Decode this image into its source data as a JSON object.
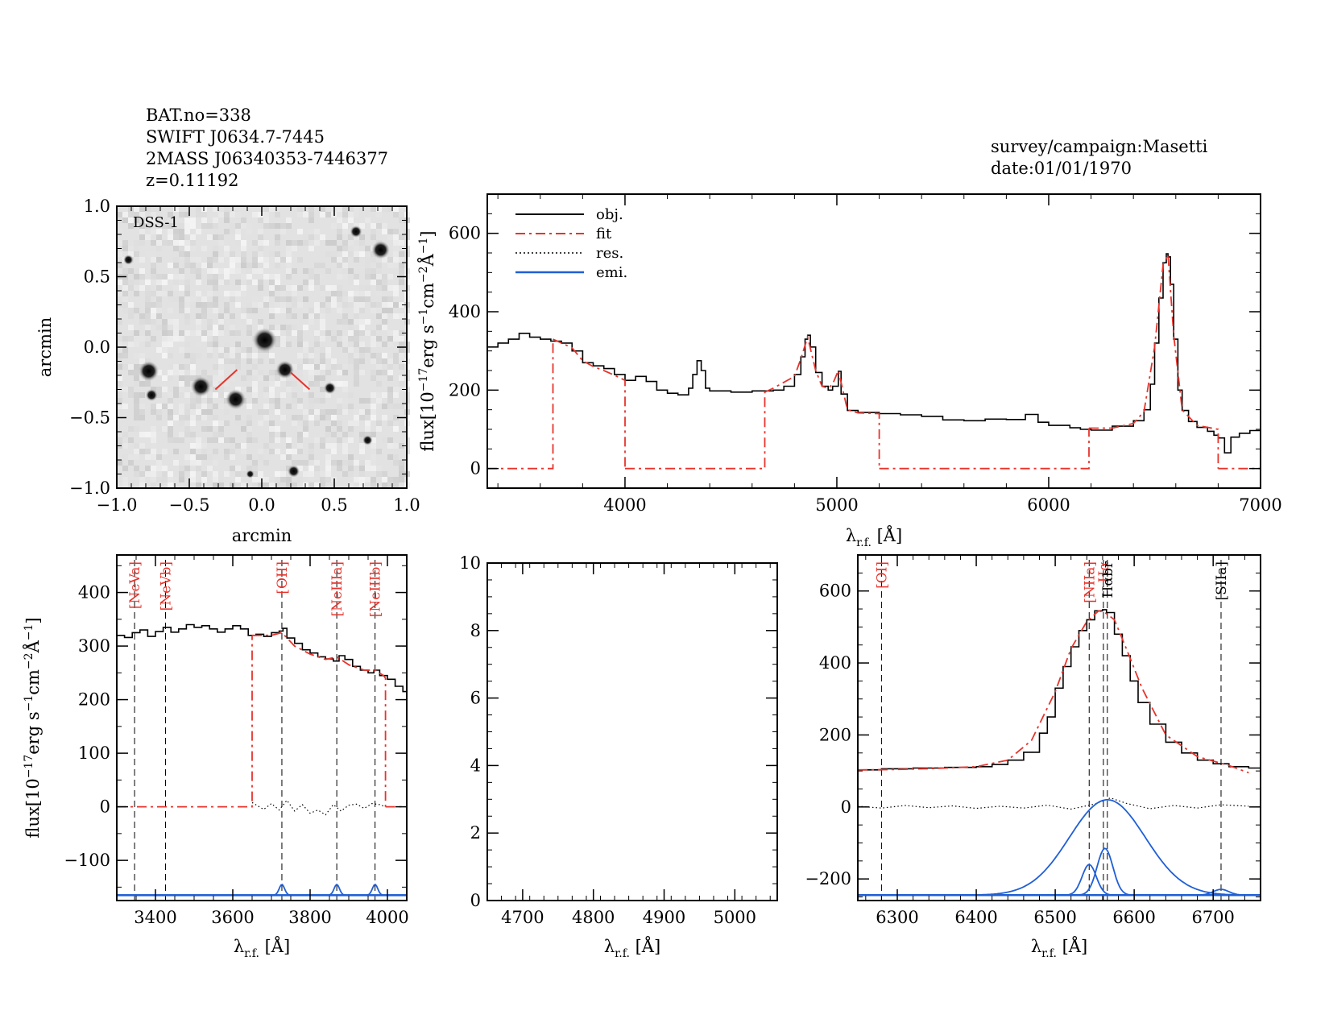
{
  "header": {
    "lines": [
      "BAT.no=338",
      "SWIFT J0634.7-7445",
      "2MASS J06340353-7446377",
      "z=0.11192"
    ],
    "survey": "survey/campaign:Masetti",
    "date": "date:01/01/1970"
  },
  "colors": {
    "obj": "#000000",
    "fit": "#e8332b",
    "res": "#000000",
    "emi": "#1f5fd6",
    "image_bg": "#e2e2e2"
  },
  "chart_data": [
    {
      "id": "dss-image",
      "type": "heatmap",
      "label": "DSS-1",
      "xlabel": "arcmin",
      "ylabel": "arcmin",
      "xlim": [
        -1.0,
        1.0
      ],
      "ylim": [
        -1.0,
        1.0
      ],
      "xticks": [
        "−1.0",
        "−0.5",
        "0.0",
        "0.5",
        "1.0"
      ],
      "yticks": [
        "−1.0",
        "−0.5",
        "0.0",
        "0.5",
        "1.0"
      ],
      "tick_values": [
        -1.0,
        -0.5,
        0.0,
        0.5,
        1.0
      ],
      "sources": [
        {
          "x": 0.02,
          "y": 0.05,
          "r": 0.06
        },
        {
          "x": -0.78,
          "y": -0.17,
          "r": 0.05
        },
        {
          "x": -0.42,
          "y": -0.28,
          "r": 0.05
        },
        {
          "x": -0.18,
          "y": -0.37,
          "r": 0.05
        },
        {
          "x": 0.16,
          "y": -0.16,
          "r": 0.045
        },
        {
          "x": 0.82,
          "y": 0.69,
          "r": 0.045
        },
        {
          "x": 0.65,
          "y": 0.82,
          "r": 0.03
        },
        {
          "x": -0.76,
          "y": -0.34,
          "r": 0.03
        },
        {
          "x": 0.47,
          "y": -0.29,
          "r": 0.03
        },
        {
          "x": 0.22,
          "y": -0.88,
          "r": 0.03
        },
        {
          "x": 0.73,
          "y": -0.66,
          "r": 0.025
        },
        {
          "x": -0.92,
          "y": 0.62,
          "r": 0.025
        },
        {
          "x": -0.08,
          "y": -0.9,
          "r": 0.02
        }
      ],
      "markers": [
        {
          "x1": -0.32,
          "y1": -0.3,
          "x2": -0.17,
          "y2": -0.16
        },
        {
          "x1": 0.2,
          "y1": -0.18,
          "x2": 0.33,
          "y2": -0.3
        }
      ]
    },
    {
      "id": "main-spectrum",
      "type": "line",
      "xlabel": "λr.f. [Å]",
      "ylabel": "flux[10⁻¹⁷erg s⁻¹cm⁻²Å⁻¹]",
      "xlim": [
        3350,
        7000
      ],
      "ylim": [
        -50,
        700
      ],
      "xticks": [
        4000,
        5000,
        6000,
        7000
      ],
      "yticks": [
        0,
        200,
        400,
        600
      ],
      "legend": {
        "position": "top-left",
        "entries": [
          "obj.",
          "fit",
          "res.",
          "emi."
        ]
      },
      "series": [
        {
          "name": "obj.",
          "style": "steps",
          "x": [
            3350,
            3400,
            3450,
            3500,
            3550,
            3600,
            3650,
            3700,
            3750,
            3800,
            3850,
            3900,
            3950,
            4000,
            4050,
            4100,
            4150,
            4200,
            4250,
            4300,
            4320,
            4340,
            4360,
            4380,
            4400,
            4500,
            4600,
            4700,
            4750,
            4800,
            4830,
            4850,
            4862,
            4875,
            4900,
            4930,
            4959,
            4980,
            5007,
            5020,
            5050,
            5100,
            5200,
            5300,
            5400,
            5500,
            5600,
            5700,
            5800,
            5890,
            5950,
            6000,
            6100,
            6150,
            6200,
            6300,
            6400,
            6450,
            6480,
            6500,
            6520,
            6540,
            6555,
            6563,
            6575,
            6590,
            6610,
            6630,
            6660,
            6700,
            6750,
            6780,
            6800,
            6830,
            6860,
            6900,
            6950,
            7000
          ],
          "y": [
            310,
            320,
            330,
            345,
            335,
            330,
            325,
            320,
            300,
            270,
            262,
            255,
            240,
            225,
            235,
            222,
            200,
            192,
            188,
            205,
            240,
            275,
            250,
            205,
            198,
            195,
            198,
            200,
            210,
            240,
            285,
            330,
            340,
            310,
            245,
            210,
            200,
            210,
            248,
            190,
            148,
            143,
            140,
            137,
            133,
            124,
            122,
            126,
            125,
            138,
            118,
            110,
            104,
            100,
            98,
            108,
            122,
            150,
            215,
            320,
            435,
            525,
            548,
            540,
            470,
            330,
            200,
            148,
            120,
            105,
            95,
            85,
            78,
            40,
            80,
            90,
            97,
            98
          ]
        },
        {
          "name": "fit",
          "style": "dashdot",
          "segments": [
            {
              "x": [
                3350,
                3660,
                3660
              ],
              "y": [
                0,
                0,
                330
              ]
            },
            {
              "x": [
                3660,
                3750,
                3800,
                3850,
                3900,
                3950,
                4000,
                4000
              ],
              "y": [
                330,
                308,
                275,
                260,
                250,
                238,
                225,
                0
              ]
            },
            {
              "x": [
                4000,
                4660,
                4660
              ],
              "y": [
                0,
                0,
                195
              ]
            },
            {
              "x": [
                4660,
                4700,
                4800,
                4830,
                4862,
                4900,
                4930,
                4959,
                4980,
                5007,
                5050,
                5100,
                5200,
                5200
              ],
              "y": [
                195,
                205,
                235,
                280,
                335,
                250,
                210,
                205,
                215,
                250,
                150,
                142,
                140,
                0
              ]
            },
            {
              "x": [
                5200,
                6190,
                6190
              ],
              "y": [
                0,
                0,
                103
              ]
            },
            {
              "x": [
                6190,
                6300,
                6400,
                6450,
                6500,
                6540,
                6563,
                6590,
                6630,
                6700,
                6800,
                6800
              ],
              "y": [
                103,
                103,
                115,
                145,
                310,
                520,
                545,
                340,
                150,
                110,
                100,
                0
              ]
            },
            {
              "x": [
                6800,
                7000
              ],
              "y": [
                0,
                0
              ]
            }
          ]
        }
      ]
    },
    {
      "id": "blue-zoom",
      "type": "line",
      "xlabel": "λr.f. [Å]",
      "ylabel": "flux[10⁻¹⁷erg s⁻¹cm⁻²Å⁻¹]",
      "xlim": [
        3300,
        4050
      ],
      "ylim": [
        -175,
        470
      ],
      "xticks": [
        3400,
        3600,
        3800,
        4000
      ],
      "yticks": [
        -100,
        0,
        100,
        200,
        300,
        400
      ],
      "line_labels": [
        {
          "text": "[NeVa]",
          "x": 3346,
          "color": "red"
        },
        {
          "text": "[NeVb]",
          "x": 3426,
          "color": "red"
        },
        {
          "text": "[OII]",
          "x": 3727,
          "color": "red"
        },
        {
          "text": "[NeIIIa]",
          "x": 3869,
          "color": "red"
        },
        {
          "text": "[NeIIIb]",
          "x": 3968,
          "color": "red"
        }
      ],
      "series": [
        {
          "name": "obj.",
          "style": "steps",
          "x": [
            3300,
            3320,
            3340,
            3360,
            3380,
            3400,
            3420,
            3440,
            3460,
            3480,
            3500,
            3520,
            3540,
            3560,
            3580,
            3600,
            3620,
            3640,
            3660,
            3680,
            3700,
            3720,
            3730,
            3740,
            3760,
            3780,
            3800,
            3820,
            3840,
            3860,
            3875,
            3890,
            3910,
            3930,
            3950,
            3965,
            3980,
            4000,
            4020,
            4040
          ],
          "y": [
            320,
            316,
            325,
            330,
            318,
            327,
            335,
            326,
            332,
            340,
            335,
            338,
            332,
            326,
            332,
            338,
            332,
            320,
            322,
            318,
            325,
            328,
            333,
            315,
            305,
            293,
            287,
            280,
            276,
            272,
            282,
            275,
            262,
            255,
            250,
            255,
            245,
            238,
            225,
            215
          ]
        },
        {
          "name": "fit",
          "style": "dashdot",
          "segments": [
            {
              "x": [
                3300,
                3650,
                3650
              ],
              "y": [
                0,
                0,
                320
              ]
            },
            {
              "x": [
                3650,
                3700,
                3727,
                3760,
                3800,
                3840,
                3869,
                3900,
                3940,
                3968,
                3990,
                3995,
                3995
              ],
              "y": [
                320,
                320,
                325,
                300,
                285,
                275,
                280,
                265,
                255,
                255,
                245,
                240,
                0
              ]
            },
            {
              "x": [
                3995,
                4050
              ],
              "y": [
                0,
                0
              ]
            }
          ]
        },
        {
          "name": "res.",
          "style": "dotted",
          "x": [
            3650,
            3680,
            3700,
            3720,
            3740,
            3760,
            3780,
            3800,
            3820,
            3840,
            3860,
            3880,
            3900,
            3920,
            3940,
            3960,
            3980,
            3995
          ],
          "y": [
            8,
            -5,
            6,
            -6,
            12,
            -8,
            4,
            -12,
            -6,
            -15,
            4,
            -8,
            3,
            5,
            -3,
            6,
            4,
            0
          ]
        },
        {
          "name": "emi.",
          "style": "solid",
          "baseline": -165,
          "gaussians": [
            {
              "center": 3727,
              "sigma": 7,
              "amp": 20
            },
            {
              "center": 3869,
              "sigma": 7,
              "amp": 20
            },
            {
              "center": 3968,
              "sigma": 7,
              "amp": 20
            }
          ]
        }
      ]
    },
    {
      "id": "hbeta-zoom",
      "type": "line",
      "xlabel": "λr.f. [Å]",
      "xlim": [
        4650,
        5060
      ],
      "ylim": [
        0,
        10
      ],
      "xticks": [
        4700,
        4800,
        4900,
        5000
      ],
      "yticks": [
        0,
        2,
        4,
        6,
        8,
        10
      ],
      "series": []
    },
    {
      "id": "halpha-zoom",
      "type": "line",
      "xlabel": "λr.f. [Å]",
      "xlim": [
        6250,
        6760
      ],
      "ylim": [
        -260,
        700
      ],
      "xticks": [
        6300,
        6400,
        6500,
        6600,
        6700
      ],
      "yticks": [
        -200,
        0,
        200,
        400,
        600
      ],
      "line_labels": [
        {
          "text": "[OI]",
          "x": 6280,
          "color": "red"
        },
        {
          "text": "[NIIa]",
          "x": 6543,
          "color": "red"
        },
        {
          "text": "Hα",
          "x": 6561,
          "color": "red"
        },
        {
          "text": "Hαbr",
          "x": 6566,
          "color": "black"
        },
        {
          "text": "[SIIa]",
          "x": 6710,
          "color": "black"
        }
      ],
      "series": [
        {
          "name": "obj.",
          "style": "steps",
          "x": [
            6250,
            6280,
            6320,
            6360,
            6400,
            6420,
            6440,
            6460,
            6480,
            6490,
            6500,
            6510,
            6520,
            6530,
            6540,
            6550,
            6560,
            6565,
            6575,
            6585,
            6595,
            6605,
            6620,
            6640,
            6660,
            6680,
            6700,
            6720,
            6745
          ],
          "y": [
            103,
            106,
            108,
            110,
            112,
            118,
            130,
            152,
            205,
            250,
            330,
            390,
            445,
            490,
            520,
            545,
            548,
            540,
            480,
            420,
            350,
            290,
            230,
            180,
            150,
            130,
            120,
            112,
            108
          ]
        },
        {
          "name": "fit",
          "style": "dashdot",
          "x": [
            6250,
            6300,
            6350,
            6400,
            6440,
            6470,
            6500,
            6520,
            6540,
            6555,
            6563,
            6575,
            6590,
            6610,
            6640,
            6680,
            6720,
            6745
          ],
          "y": [
            103,
            104,
            107,
            112,
            130,
            185,
            320,
            440,
            515,
            545,
            540,
            520,
            440,
            330,
            200,
            140,
            115,
            95
          ]
        },
        {
          "name": "res.",
          "style": "dotted",
          "x": [
            6250,
            6280,
            6310,
            6340,
            6370,
            6400,
            6430,
            6460,
            6490,
            6520,
            6550,
            6570,
            6590,
            6620,
            6650,
            6680,
            6710,
            6745
          ],
          "y": [
            2,
            -3,
            4,
            -2,
            3,
            -4,
            2,
            -3,
            5,
            -6,
            8,
            25,
            10,
            -5,
            4,
            -3,
            6,
            2
          ]
        },
        {
          "name": "emi.",
          "style": "solid",
          "baseline": -245,
          "gaussians": [
            {
              "center": 6543,
              "sigma": 9,
              "amp": 85
            },
            {
              "center": 6563,
              "sigma": 10,
              "amp": 130
            },
            {
              "center": 6566,
              "sigma": 48,
              "amp": 265
            },
            {
              "center": 6710,
              "sigma": 10,
              "amp": 16
            }
          ]
        }
      ]
    }
  ]
}
